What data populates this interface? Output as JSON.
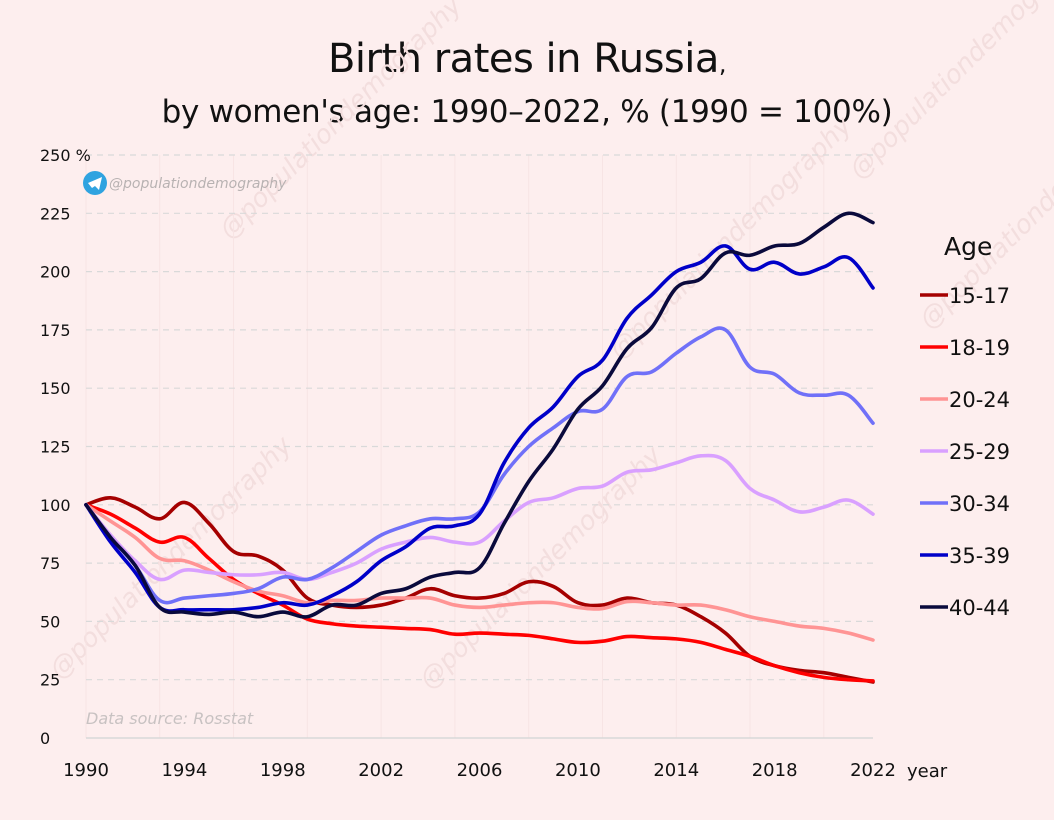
{
  "title": "Birth rates in Russia",
  "title_suffix": ",",
  "subtitle": "by women's age: 1990–2022, % (1990 = 100%)",
  "handle": "@populationdemography",
  "handle_icon": "telegram-icon",
  "source": "Data source: Rosstat",
  "watermark": "@populationdemography",
  "chart_data": {
    "type": "line",
    "title": "Birth rates in Russia, by women's age: 1990–2022, % (1990 = 100%)",
    "xlabel": "year",
    "ylabel": "%",
    "xlim": [
      1990,
      2022
    ],
    "ylim": [
      0,
      250
    ],
    "grid": true,
    "legend_title": "Age",
    "legend_position": "right",
    "x_ticks": [
      1990,
      1994,
      1998,
      2002,
      2006,
      2010,
      2014,
      2018,
      2022
    ],
    "x_tick_labels": [
      "1990",
      "1994",
      "1998",
      "2002",
      "2006",
      "2010",
      "2014",
      "2018",
      "2022"
    ],
    "y_ticks": [
      0,
      25,
      50,
      75,
      100,
      125,
      150,
      175,
      200,
      225,
      250
    ],
    "y_tick_labels": [
      "0",
      "25",
      "50",
      "75",
      "100",
      "125",
      "150",
      "175",
      "200",
      "225",
      "250 %"
    ],
    "x": [
      1990,
      1991,
      1992,
      1993,
      1994,
      1995,
      1996,
      1997,
      1998,
      1999,
      2000,
      2001,
      2002,
      2003,
      2004,
      2005,
      2006,
      2007,
      2008,
      2009,
      2010,
      2011,
      2012,
      2013,
      2014,
      2015,
      2016,
      2017,
      2018,
      2019,
      2020,
      2021,
      2022
    ],
    "series": [
      {
        "name": "15-17",
        "color": "#a50000",
        "values": [
          100,
          103,
          99,
          94,
          101,
          92,
          80,
          78,
          72,
          60,
          57,
          56,
          57,
          60,
          64,
          61,
          60,
          62,
          67,
          65,
          58,
          57,
          60,
          58,
          57,
          52,
          45,
          35,
          31,
          29,
          28,
          26,
          24
        ]
      },
      {
        "name": "18-19",
        "color": "#ff0000",
        "values": [
          100,
          96,
          90,
          84,
          86,
          77,
          68,
          62,
          57,
          51,
          49,
          48,
          47.5,
          47,
          46.5,
          44.5,
          45,
          44.5,
          44,
          42.5,
          41,
          41.5,
          43.5,
          43,
          42.5,
          41,
          38,
          35,
          31,
          28,
          26,
          25,
          24.5
        ]
      },
      {
        "name": "20-24",
        "color": "#ff9494",
        "values": [
          100,
          93,
          86,
          77,
          76,
          72,
          67,
          63,
          61,
          58,
          59,
          59,
          60,
          60,
          60,
          57,
          56,
          57,
          58,
          58,
          56,
          55.5,
          58.5,
          58,
          57,
          57,
          55,
          52,
          50,
          48,
          47,
          45,
          42
        ]
      },
      {
        "name": "25-29",
        "color": "#d9a0ff",
        "values": [
          100,
          87,
          76,
          68,
          72,
          71,
          70,
          70,
          71,
          68,
          71,
          75,
          81,
          84,
          86,
          84,
          84,
          93,
          101,
          103,
          107,
          108,
          114,
          115,
          118,
          121,
          119,
          107,
          102,
          97,
          99,
          102,
          96
        ]
      },
      {
        "name": "30-34",
        "color": "#7070f8",
        "values": [
          100,
          86,
          74,
          59,
          60,
          61,
          62,
          64,
          69,
          68,
          73,
          80,
          87,
          91,
          94,
          94,
          97,
          113,
          125,
          133,
          140,
          141,
          155,
          157,
          165,
          172,
          175,
          159,
          156,
          148,
          147,
          147,
          135
        ]
      },
      {
        "name": "35-39",
        "color": "#0000c8",
        "values": [
          100,
          84,
          71,
          56,
          55,
          55,
          55,
          56,
          58,
          57,
          61,
          67,
          76,
          82,
          90,
          91,
          96,
          118,
          133,
          142,
          155,
          162,
          180,
          190,
          200,
          204,
          211,
          201,
          204,
          199,
          202,
          206,
          193
        ]
      },
      {
        "name": "40-44",
        "color": "#0a0a3c",
        "values": [
          100,
          86,
          74,
          56,
          54,
          53,
          54,
          52,
          54,
          52,
          57,
          57,
          62,
          64,
          69,
          71,
          73,
          92,
          110,
          124,
          141,
          151,
          167,
          176,
          193,
          197,
          208,
          207,
          211,
          212,
          219,
          225,
          221
        ]
      }
    ]
  }
}
